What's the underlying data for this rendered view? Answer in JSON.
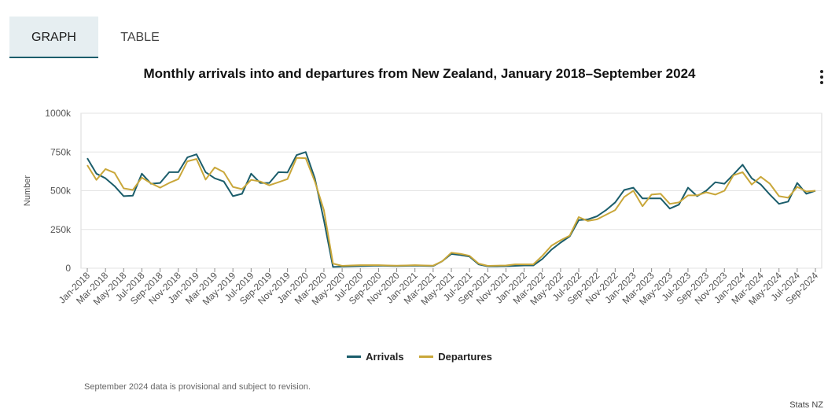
{
  "tabs": [
    {
      "label": "GRAPH",
      "active": true
    },
    {
      "label": "TABLE",
      "active": false
    }
  ],
  "chart_data": {
    "type": "line",
    "title": "Monthly arrivals into and departures from New Zealand, January 2018–September 2024",
    "ylabel": "Number",
    "xlabel": "",
    "ylim": [
      0,
      1000000
    ],
    "y_ticks": [
      {
        "value": 0,
        "label": "0"
      },
      {
        "value": 250000,
        "label": "250k"
      },
      {
        "value": 500000,
        "label": "500k"
      },
      {
        "value": 750000,
        "label": "750k"
      },
      {
        "value": 1000000,
        "label": "1000k"
      }
    ],
    "grid": true,
    "legend_position": "bottom",
    "x": [
      "Jan-2018",
      "Feb-2018",
      "Mar-2018",
      "Apr-2018",
      "May-2018",
      "Jun-2018",
      "Jul-2018",
      "Aug-2018",
      "Sep-2018",
      "Oct-2018",
      "Nov-2018",
      "Dec-2018",
      "Jan-2019",
      "Feb-2019",
      "Mar-2019",
      "Apr-2019",
      "May-2019",
      "Jun-2019",
      "Jul-2019",
      "Aug-2019",
      "Sep-2019",
      "Oct-2019",
      "Nov-2019",
      "Dec-2019",
      "Jan-2020",
      "Feb-2020",
      "Mar-2020",
      "Apr-2020",
      "May-2020",
      "Jun-2020",
      "Jul-2020",
      "Aug-2020",
      "Sep-2020",
      "Oct-2020",
      "Nov-2020",
      "Dec-2020",
      "Jan-2021",
      "Feb-2021",
      "Mar-2021",
      "Apr-2021",
      "May-2021",
      "Jun-2021",
      "Jul-2021",
      "Aug-2021",
      "Sep-2021",
      "Oct-2021",
      "Nov-2021",
      "Dec-2021",
      "Jan-2022",
      "Feb-2022",
      "Mar-2022",
      "Apr-2022",
      "May-2022",
      "Jun-2022",
      "Jul-2022",
      "Aug-2022",
      "Sep-2022",
      "Oct-2022",
      "Nov-2022",
      "Dec-2022",
      "Jan-2023",
      "Feb-2023",
      "Mar-2023",
      "Apr-2023",
      "May-2023",
      "Jun-2023",
      "Jul-2023",
      "Aug-2023",
      "Sep-2023",
      "Oct-2023",
      "Nov-2023",
      "Dec-2023",
      "Jan-2024",
      "Feb-2024",
      "Mar-2024",
      "Apr-2024",
      "May-2024",
      "Jun-2024",
      "Jul-2024",
      "Aug-2024",
      "Sep-2024"
    ],
    "tick_labels": [
      "Jan-2018",
      "Mar-2018",
      "May-2018",
      "Jul-2018",
      "Sep-2018",
      "Nov-2018",
      "Jan-2019",
      "Mar-2019",
      "May-2019",
      "Jul-2019",
      "Sep-2019",
      "Nov-2019",
      "Jan-2020",
      "Mar-2020",
      "May-2020",
      "Jul-2020",
      "Sep-2020",
      "Nov-2020",
      "Jan-2021",
      "Mar-2021",
      "May-2021",
      "Jul-2021",
      "Sep-2021",
      "Nov-2021",
      "Jan-2022",
      "Mar-2022",
      "May-2022",
      "Jul-2022",
      "Sep-2022",
      "Nov-2022",
      "Jan-2023",
      "Mar-2023",
      "May-2023",
      "Jul-2023",
      "Sep-2023",
      "Nov-2023",
      "Jan-2024",
      "Mar-2024",
      "May-2024",
      "Jul-2024",
      "Sep-2024"
    ],
    "series": [
      {
        "name": "Arrivals",
        "color": "#1b5d6b",
        "values": [
          710000,
          610000,
          580000,
          530000,
          465000,
          468000,
          610000,
          545000,
          550000,
          620000,
          620000,
          715000,
          735000,
          620000,
          580000,
          560000,
          465000,
          480000,
          610000,
          550000,
          550000,
          620000,
          618000,
          730000,
          750000,
          580000,
          310000,
          8000,
          10000,
          12000,
          14000,
          15000,
          16000,
          15000,
          14000,
          15000,
          16000,
          15000,
          14000,
          45000,
          92000,
          85000,
          75000,
          25000,
          12000,
          12000,
          13000,
          15000,
          18000,
          18000,
          60000,
          120000,
          165000,
          205000,
          310000,
          315000,
          335000,
          375000,
          425000,
          505000,
          520000,
          450000,
          450000,
          450000,
          385000,
          410000,
          520000,
          465000,
          500000,
          555000,
          545000,
          605000,
          668000,
          580000,
          540000,
          475000,
          415000,
          430000,
          550000,
          480000,
          500000
        ]
      },
      {
        "name": "Departures",
        "color": "#c9a73a",
        "values": [
          665000,
          570000,
          640000,
          615000,
          515000,
          505000,
          585000,
          548000,
          520000,
          550000,
          575000,
          690000,
          705000,
          572000,
          650000,
          620000,
          525000,
          510000,
          570000,
          560000,
          535000,
          555000,
          575000,
          712000,
          710000,
          560000,
          375000,
          30000,
          15000,
          18000,
          20000,
          20000,
          20000,
          18000,
          17000,
          18000,
          20000,
          18000,
          17000,
          45000,
          100000,
          93000,
          80000,
          30000,
          15000,
          17000,
          18000,
          25000,
          25000,
          25000,
          80000,
          145000,
          180000,
          210000,
          330000,
          305000,
          315000,
          345000,
          375000,
          460000,
          500000,
          400000,
          475000,
          480000,
          415000,
          425000,
          470000,
          470000,
          490000,
          475000,
          500000,
          600000,
          620000,
          540000,
          590000,
          545000,
          465000,
          455000,
          525000,
          495000,
          500000
        ]
      }
    ]
  },
  "legend": [
    {
      "label": "Arrivals",
      "color": "#1b5d6b"
    },
    {
      "label": "Departures",
      "color": "#c9a73a"
    }
  ],
  "note": "September 2024 data is provisional and subject to revision.",
  "source": "Stats NZ",
  "menu_icon": "more-vertical-icon"
}
